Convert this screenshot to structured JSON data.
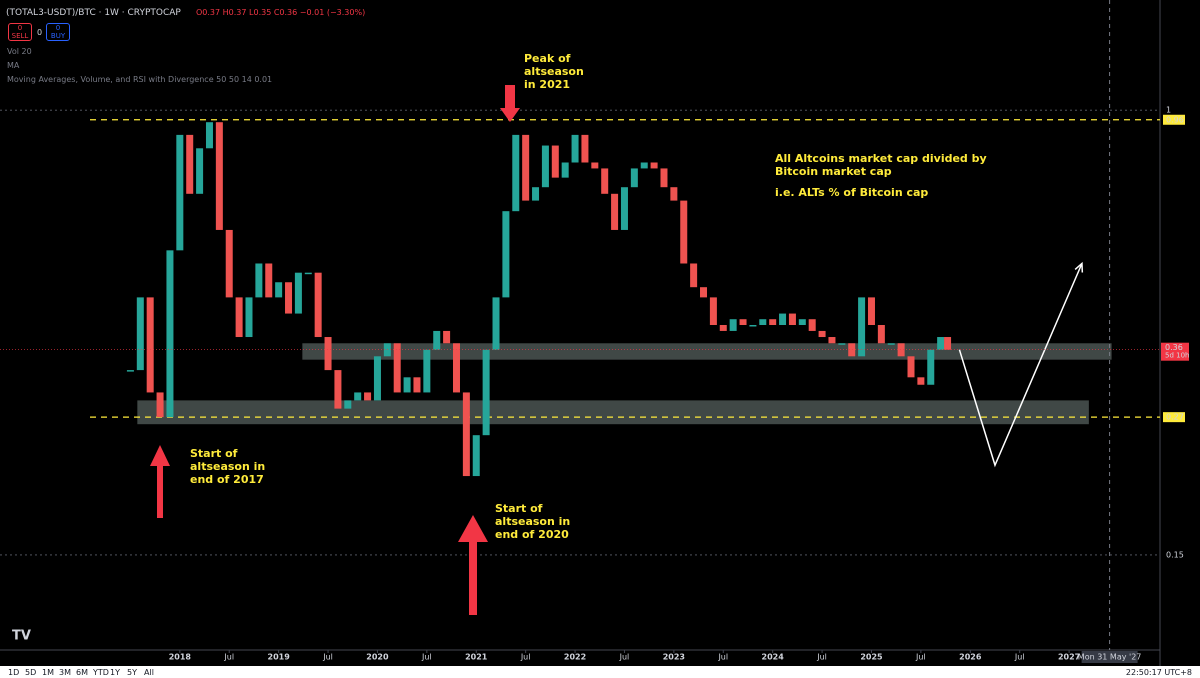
{
  "header": {
    "symbol": "(TOTAL3-USDT)/BTC · 1W · CRYPTOCAP",
    "ohlc": "O0.37 H0.37 L0.35 C0.36 −0.01 (−3.30%)",
    "sell": {
      "count": "0",
      "label": "SELL"
    },
    "spread": "0",
    "buy": {
      "count": "0",
      "label": "BUY"
    },
    "indicators": [
      "Vol 20",
      "MA",
      "Moving Averages, Volume, and RSI with Divergence 50 50 14 0.01"
    ]
  },
  "toolbar": {
    "ranges": [
      "1D",
      "5D",
      "1M",
      "3M",
      "6M",
      "YTD",
      "1Y",
      "5Y",
      "All"
    ],
    "clock": "22:50:17 UTC+8"
  },
  "chart_data": {
    "type": "candle-line",
    "log_scale": true,
    "xlim": [
      2016.18,
      2027.92
    ],
    "ylim": [
      0.1,
      1.6
    ],
    "xticks": [
      2018,
      {
        "value": 2018.5,
        "label": "Jul"
      },
      2019,
      {
        "value": 2019.5,
        "label": "Jul"
      },
      2020,
      {
        "value": 2020.5,
        "label": "Jul"
      },
      2021,
      {
        "value": 2021.5,
        "label": "Jul"
      },
      2022,
      {
        "value": 2022.5,
        "label": "Jul"
      },
      2023,
      {
        "value": 2023.5,
        "label": "Jul"
      },
      2024,
      {
        "value": 2024.5,
        "label": "Jul"
      },
      2025,
      {
        "value": 2025.5,
        "label": "Jul"
      },
      2026,
      {
        "value": 2026.5,
        "label": "Jul"
      },
      2027
    ],
    "yticks": [
      0.15,
      1
    ],
    "grid": true,
    "up_color": "#26a69a",
    "down_color": "#ef5350",
    "series": [
      {
        "color": "#26a69a",
        "x": [
          2017.5,
          2017.6,
          2017.7,
          2017.8,
          2017.9,
          2018.0,
          2018.1,
          2018.2,
          2018.3,
          2018.4,
          2018.5,
          2018.6,
          2018.7,
          2018.8,
          2018.9,
          2019.0,
          2019.1,
          2019.2,
          2019.3,
          2019.4,
          2019.5,
          2019.6,
          2019.7,
          2019.8,
          2019.9,
          2020.0,
          2020.1,
          2020.2,
          2020.3,
          2020.4,
          2020.5,
          2020.6,
          2020.7,
          2020.8,
          2020.9,
          2021.0,
          2021.1,
          2021.2,
          2021.3,
          2021.4,
          2021.5,
          2021.6,
          2021.7,
          2021.8,
          2021.9,
          2022.0,
          2022.1,
          2022.2,
          2022.3,
          2022.4,
          2022.5,
          2022.6,
          2022.7,
          2022.8,
          2022.9,
          2023.0,
          2023.1,
          2023.2,
          2023.3,
          2023.4,
          2023.5,
          2023.6,
          2023.7,
          2023.8,
          2023.9,
          2024.0,
          2024.1,
          2024.2,
          2024.3,
          2024.4,
          2024.5,
          2024.6,
          2024.7,
          2024.8,
          2024.9,
          2025.0,
          2025.1,
          2025.2,
          2025.3,
          2025.4,
          2025.5,
          2025.6,
          2025.7,
          2025.77
        ],
        "values": [
          0.33,
          0.45,
          0.3,
          0.27,
          0.55,
          0.9,
          0.7,
          0.85,
          0.95,
          0.6,
          0.45,
          0.38,
          0.45,
          0.52,
          0.45,
          0.48,
          0.42,
          0.5,
          0.5,
          0.38,
          0.33,
          0.28,
          0.29,
          0.3,
          0.29,
          0.35,
          0.37,
          0.3,
          0.32,
          0.3,
          0.36,
          0.39,
          0.37,
          0.3,
          0.21,
          0.25,
          0.36,
          0.45,
          0.65,
          0.9,
          0.68,
          0.72,
          0.86,
          0.75,
          0.8,
          0.9,
          0.8,
          0.78,
          0.7,
          0.6,
          0.72,
          0.78,
          0.8,
          0.78,
          0.72,
          0.68,
          0.52,
          0.47,
          0.45,
          0.4,
          0.39,
          0.41,
          0.4,
          0.4,
          0.41,
          0.4,
          0.42,
          0.4,
          0.41,
          0.39,
          0.38,
          0.37,
          0.37,
          0.35,
          0.45,
          0.4,
          0.37,
          0.37,
          0.35,
          0.32,
          0.31,
          0.36,
          0.38,
          0.36
        ]
      },
      {
        "color": "#ffffff",
        "x": [
          2025.89,
          2026.25,
          2027.13
        ],
        "values": [
          0.36,
          0.22,
          0.52
        ]
      }
    ],
    "levels": [
      {
        "value": 0.96,
        "color": "#ffeb3b"
      },
      {
        "value": 0.27,
        "color": "#ffeb3b"
      }
    ],
    "zones": [
      {
        "from": 2019.24,
        "to": 2027.43,
        "low": 0.345,
        "high": 0.37
      },
      {
        "from": 2017.57,
        "to": 2027.2,
        "low": 0.262,
        "high": 0.29
      }
    ],
    "last_price": {
      "value": 0.36,
      "countdown": "5d 10h"
    },
    "crosshair": {
      "x": 2027.41,
      "label": "Mon 31 May '27"
    },
    "annotations": [
      "Peak of altseason in 2021",
      "All Altcoins market cap divided by Bitcoin market cap",
      "i.e. ALTs % of Bitcoin cap",
      "Start of altseason in end of 2017",
      "Start of altseason in end of 2020"
    ]
  }
}
